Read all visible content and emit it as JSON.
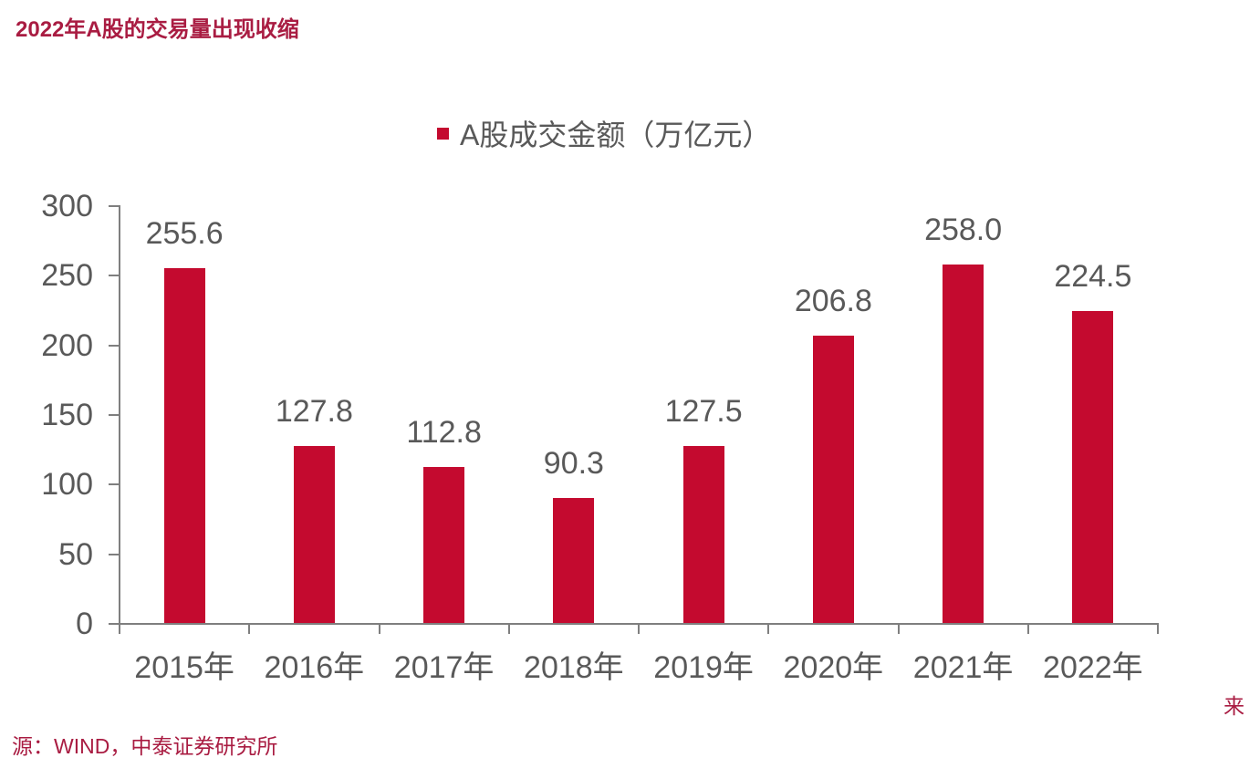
{
  "page": {
    "title": "2022年A股的交易量出现收缩",
    "source_wrapped_char": "来",
    "source_line": "源：WIND，中泰证券研究所"
  },
  "chart_data": {
    "type": "bar",
    "title": "2022年A股的交易量出现收缩",
    "categories": [
      "2015年",
      "2016年",
      "2017年",
      "2018年",
      "2019年",
      "2020年",
      "2021年",
      "2022年"
    ],
    "series": [
      {
        "name": "A股成交金额（万亿元）",
        "values": [
          255.6,
          127.8,
          112.8,
          90.3,
          127.5,
          206.8,
          258.0,
          224.5
        ]
      }
    ],
    "value_labels": [
      "255.6",
      "127.8",
      "112.8",
      "90.3",
      "127.5",
      "206.8",
      "258.0",
      "224.5"
    ],
    "xlabel": "",
    "ylabel": "",
    "ylim": [
      0,
      300
    ],
    "yticks": [
      0,
      50,
      100,
      150,
      200,
      250,
      300
    ],
    "grid": false,
    "legend_position": "top-center",
    "source": "来源：WIND，中泰证券研究所",
    "colors": {
      "bar": "#C40A2F",
      "title_text": "#A91C42",
      "source_text": "#A91C42",
      "axis": "#7F7F7F",
      "tick_label": "#595959",
      "value_label": "#595959"
    }
  }
}
